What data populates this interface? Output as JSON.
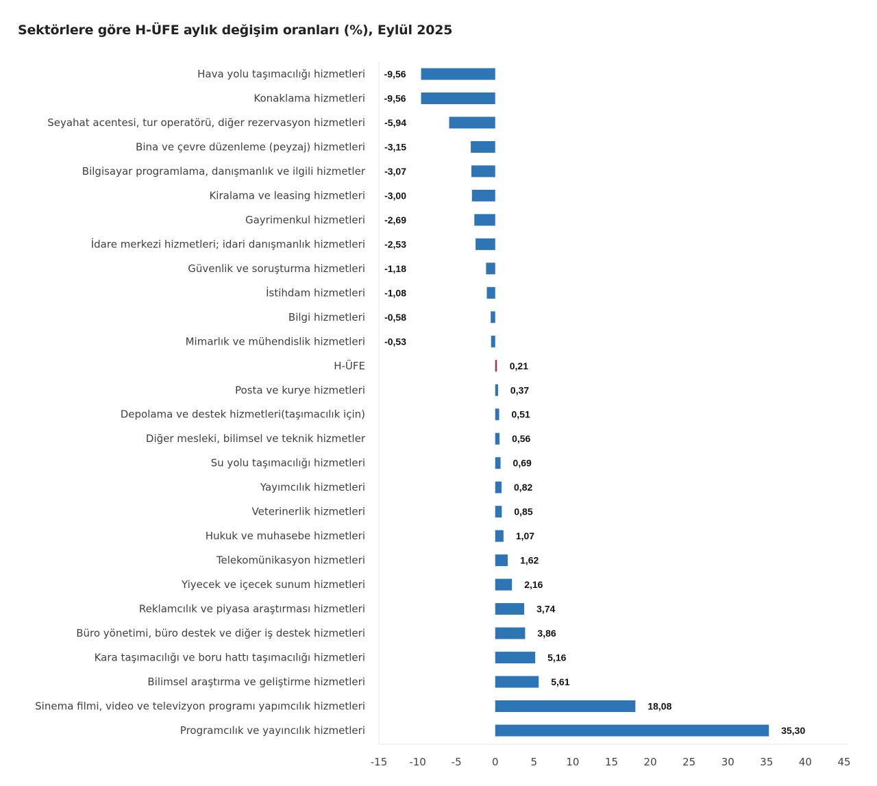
{
  "chart_data": {
    "type": "bar",
    "orientation": "horizontal",
    "title": "Sektörlere göre H-ÜFE aylık değişim oranları (%), Eylül 2025",
    "xlabel": "",
    "ylabel": "",
    "xlim": [
      -15,
      45
    ],
    "xticks": [
      "-15",
      "-10",
      "-5",
      "0",
      "5",
      "10",
      "15",
      "20",
      "25",
      "30",
      "35",
      "40",
      "45"
    ],
    "grid": false,
    "colors": {
      "default": "#2E75B6",
      "highlight": "#A5304A"
    },
    "highlight_category": "H-ÜFE",
    "categories": [
      "Hava yolu taşımacılığı hizmetleri",
      "Konaklama hizmetleri",
      "Seyahat acentesi, tur operatörü, diğer rezervasyon hizmetleri",
      "Bina ve çevre düzenleme (peyzaj) hizmetleri",
      "Bilgisayar programlama, danışmanlık ve ilgili hizmetler",
      "Kiralama ve leasing hizmetleri",
      "Gayrimenkul hizmetleri",
      "İdare merkezi hizmetleri; idari danışmanlık hizmetleri",
      "Güvenlik ve soruşturma hizmetleri",
      "İstihdam hizmetleri",
      "Bilgi hizmetleri",
      "Mimarlık ve mühendislik hizmetleri",
      "H-ÜFE",
      "Posta ve kurye hizmetleri",
      "Depolama ve destek hizmetleri(taşımacılık için)",
      "Diğer mesleki, bilimsel ve teknik hizmetler",
      "Su yolu taşımacılığı hizmetleri",
      "Yayımcılık hizmetleri",
      "Veterinerlik hizmetleri",
      "Hukuk ve muhasebe hizmetleri",
      "Telekomünikasyon hizmetleri",
      "Yiyecek ve içecek sunum hizmetleri",
      "Reklamcılık ve piyasa araştırması hizmetleri",
      "Büro yönetimi, büro destek ve diğer iş destek hizmetleri",
      "Kara taşımacılığı ve boru hattı taşımacılığı hizmetleri",
      "Bilimsel araştırma ve geliştirme hizmetleri",
      "Sinema filmi, video ve televizyon programı yapımcılık hizmetleri",
      "Programcılık ve yayıncılık hizmetleri"
    ],
    "values": [
      -9.56,
      -9.56,
      -5.94,
      -3.15,
      -3.07,
      -3.0,
      -2.69,
      -2.53,
      -1.18,
      -1.08,
      -0.58,
      -0.53,
      0.21,
      0.37,
      0.51,
      0.56,
      0.69,
      0.82,
      0.85,
      1.07,
      1.62,
      2.16,
      3.74,
      3.86,
      5.16,
      5.61,
      18.08,
      35.3
    ],
    "labels": [
      "-9,56",
      "-9,56",
      "-5,94",
      "-3,15",
      "-3,07",
      "-3,00",
      "-2,69",
      "-2,53",
      "-1,18",
      "-1,08",
      "-0,58",
      "-0,53",
      "0,21",
      "0,37",
      "0,51",
      "0,56",
      "0,69",
      "0,82",
      "0,85",
      "1,07",
      "1,62",
      "2,16",
      "3,74",
      "3,86",
      "5,16",
      "5,61",
      "18,08",
      "35,30"
    ]
  }
}
